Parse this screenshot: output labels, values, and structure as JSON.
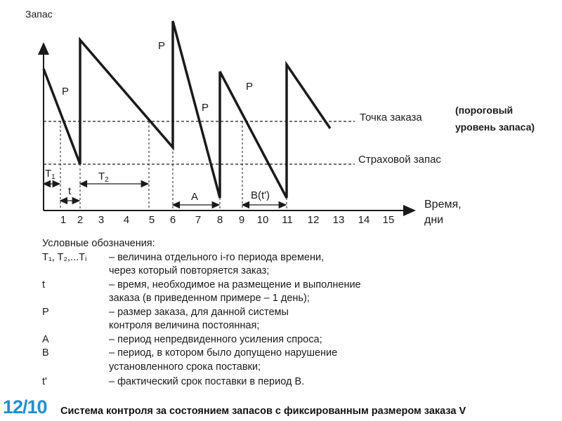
{
  "diagram": {
    "y_label": "Запас",
    "x_label_line1": "Время,",
    "x_label_line2": "дни",
    "x_ticks": [
      "1",
      "2",
      "3",
      "4",
      "5",
      "6",
      "7",
      "8",
      "9",
      "10",
      "11",
      "12",
      "13",
      "14",
      "15"
    ],
    "reorder_point_label": "Точка заказа",
    "reorder_note_line1": "(пороговый",
    "reorder_note_line2": "уровень запаса)",
    "safety_stock_label": "Страховой запас",
    "p_label": "P",
    "interval_labels": {
      "t1": "T",
      "t1_sub": "1",
      "t2": "T",
      "t2_sub": "2",
      "t": "t",
      "a": "A",
      "b": "B(t')"
    }
  },
  "legend": {
    "heading": "Условные обозначения:",
    "items": [
      {
        "symbol": "T₁, T₂,...Tᵢ",
        "line1": "– величина отдельного i-го периода времени,",
        "line2": "через который повторяется заказ;"
      },
      {
        "symbol": "t",
        "line1": "– время, необходимое на размещение и выполнение",
        "line2": "заказа (в приведенном примере – 1 день);"
      },
      {
        "symbol": "P",
        "line1": "– размер заказа, для данной системы",
        "line2": "контроля величина постоянная;"
      },
      {
        "symbol": "A",
        "line1": "– период непредвиденного усиления спроса;",
        "line2": ""
      },
      {
        "symbol": "B",
        "line1": "– период, в котором было допущено нарушение",
        "line2": "установленного срока поставки;"
      },
      {
        "symbol": "t'",
        "line1": "– фактический срок поставки в период В.",
        "line2": ""
      }
    ]
  },
  "footer": {
    "slide_number": "12/10",
    "caption": "Система контроля за состоянием запасов с фиксированным размером заказа  V"
  }
}
